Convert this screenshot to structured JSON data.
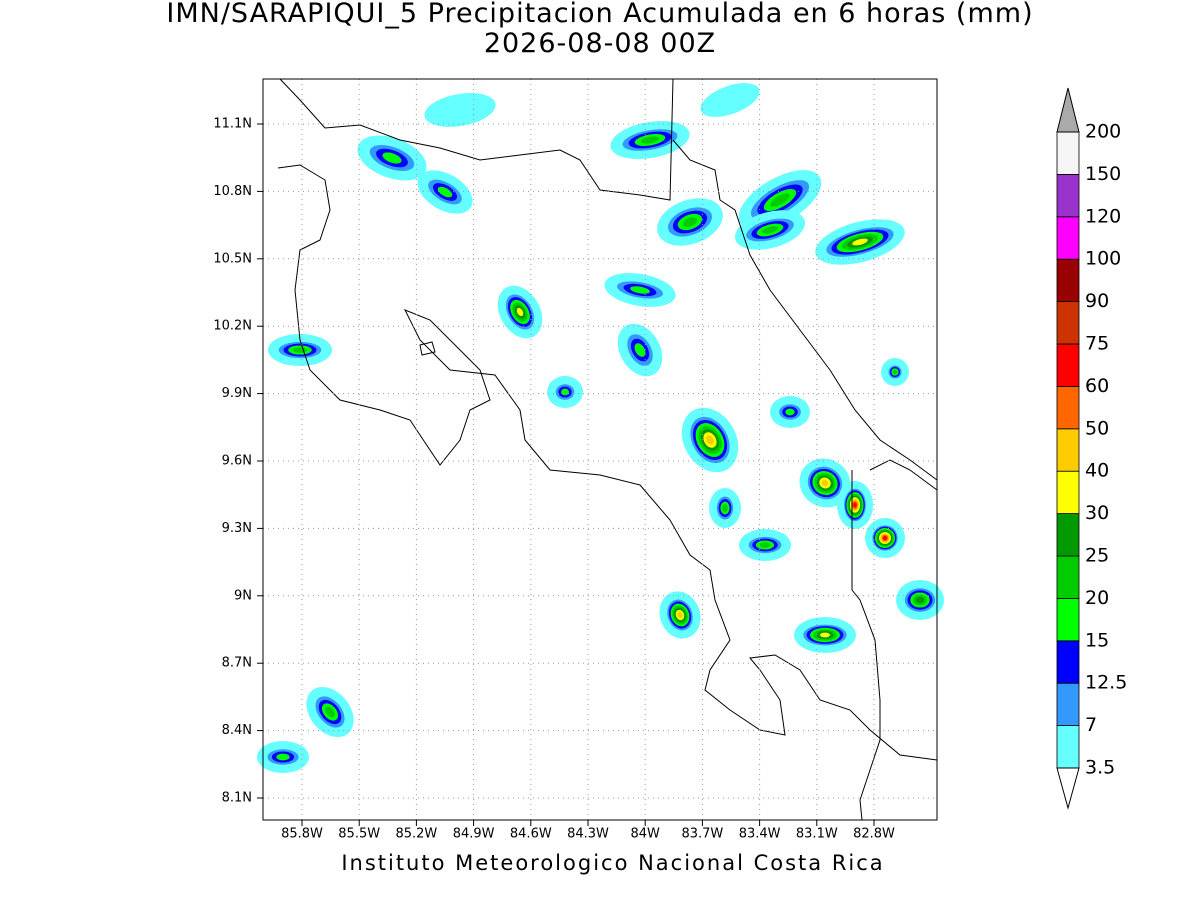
{
  "header": {
    "title": "IMN/SARAPIQUI_5 Precipitacion Acumulada en 6 horas (mm)",
    "subtitle": "2026-08-08 00Z"
  },
  "map": {
    "lat_labels": [
      "11.1N",
      "10.8N",
      "10.5N",
      "10.2N",
      "9.9N",
      "9.6N",
      "9.3N",
      "9N",
      "8.7N",
      "8.4N",
      "8.1N"
    ],
    "lon_labels": [
      "85.8W",
      "85.5W",
      "85.2W",
      "84.9W",
      "84.6W",
      "84.3W",
      "84W",
      "83.7W",
      "83.4W",
      "83.1W",
      "82.8W"
    ]
  },
  "colorbar": {
    "levels": [
      3.5,
      7,
      12.5,
      15,
      20,
      25,
      30,
      40,
      50,
      60,
      75,
      90,
      100,
      120,
      150,
      200
    ],
    "colors": [
      "#66ffff",
      "#3399ff",
      "#0000ff",
      "#00ff00",
      "#00cc00",
      "#009900",
      "#ffff00",
      "#ffcc00",
      "#ff6600",
      "#ff0000",
      "#cc3300",
      "#990000",
      "#ff00ff",
      "#9933cc",
      "#f5f5f5"
    ],
    "below_color": "#ffffff",
    "above_color": "#aaaaaa"
  },
  "footer": "Instituto Meteorologico Nacional Costa Rica"
}
